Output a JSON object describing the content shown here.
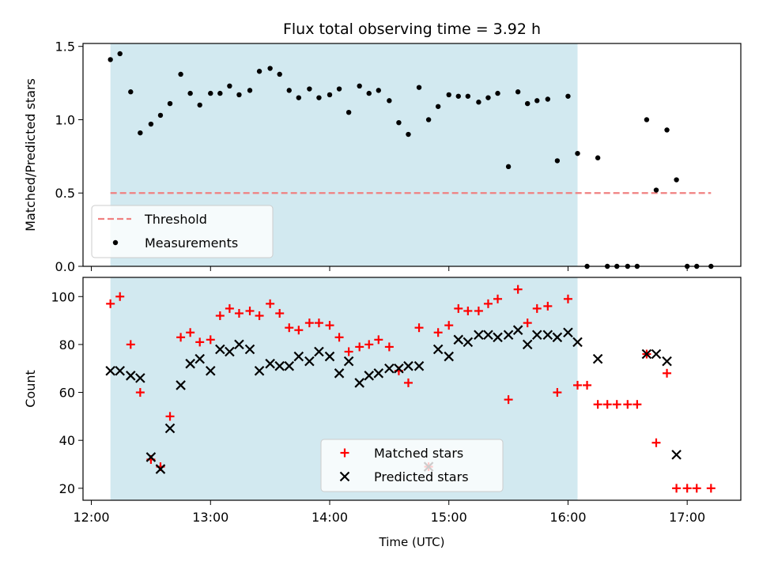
{
  "title": "Flux total observing time = 3.92 h",
  "x_axis": {
    "label": "Time (UTC)",
    "range_hours": [
      11.93,
      17.45
    ],
    "ticks": [
      {
        "value": 12,
        "label": "12:00"
      },
      {
        "value": 13,
        "label": "13:00"
      },
      {
        "value": 14,
        "label": "14:00"
      },
      {
        "value": 15,
        "label": "15:00"
      },
      {
        "value": 16,
        "label": "16:00"
      },
      {
        "value": 17,
        "label": "17:00"
      }
    ]
  },
  "observing_window_hours": [
    12.16,
    16.08
  ],
  "colors": {
    "shade": "#d2e9f0",
    "threshold": "#f08080",
    "matched": "#ff0000",
    "predicted": "#000000",
    "measurement": "#000000"
  },
  "chart_data": [
    {
      "type": "scatter",
      "panel": "top",
      "ylabel": "Matched/Predicted stars",
      "ylim": [
        0.0,
        1.52
      ],
      "yticks": [
        {
          "value": 0.0,
          "label": "0.0"
        },
        {
          "value": 0.5,
          "label": "0.5"
        },
        {
          "value": 1.0,
          "label": "1.0"
        },
        {
          "value": 1.5,
          "label": "1.5"
        }
      ],
      "threshold": {
        "name": "Threshold",
        "value": 0.5,
        "x_start": 12.16,
        "x_end": 17.2
      },
      "legend": [
        "Threshold",
        "Measurements"
      ],
      "legend_position": "lower-left",
      "series": [
        {
          "name": "Measurements",
          "x": [
            12.16,
            12.24,
            12.33,
            12.41,
            12.5,
            12.58,
            12.66,
            12.75,
            12.83,
            12.91,
            13.0,
            13.08,
            13.16,
            13.24,
            13.33,
            13.41,
            13.5,
            13.58,
            13.66,
            13.74,
            13.83,
            13.91,
            14.0,
            14.08,
            14.16,
            14.25,
            14.33,
            14.41,
            14.5,
            14.58,
            14.66,
            14.75,
            14.83,
            14.91,
            15.0,
            15.08,
            15.16,
            15.25,
            15.33,
            15.41,
            15.5,
            15.58,
            15.66,
            15.74,
            15.83,
            15.91,
            16.0,
            16.08,
            16.16,
            16.25,
            16.33,
            16.41,
            16.5,
            16.58,
            16.66,
            16.74,
            16.83,
            16.91,
            17.0,
            17.08,
            17.2
          ],
          "y": [
            1.41,
            1.45,
            1.19,
            0.91,
            0.97,
            1.03,
            1.11,
            1.31,
            1.18,
            1.1,
            1.18,
            1.18,
            1.23,
            1.17,
            1.2,
            1.33,
            1.35,
            1.31,
            1.2,
            1.15,
            1.21,
            1.15,
            1.17,
            1.21,
            1.05,
            1.23,
            1.18,
            1.2,
            1.13,
            0.98,
            0.9,
            1.22,
            1.0,
            1.09,
            1.17,
            1.16,
            1.16,
            1.12,
            1.15,
            1.18,
            0.68,
            1.19,
            1.11,
            1.13,
            1.14,
            0.72,
            1.16,
            0.77,
            0.0,
            0.74,
            0.0,
            0.0,
            0.0,
            0.0,
            1.0,
            0.52,
            0.93,
            0.59,
            0.0,
            0.0,
            0.0
          ]
        }
      ]
    },
    {
      "type": "scatter",
      "panel": "bottom",
      "ylabel": "Count",
      "ylim": [
        15,
        108
      ],
      "yticks": [
        {
          "value": 20,
          "label": "20"
        },
        {
          "value": 40,
          "label": "40"
        },
        {
          "value": 60,
          "label": "60"
        },
        {
          "value": 80,
          "label": "80"
        },
        {
          "value": 100,
          "label": "100"
        }
      ],
      "legend": [
        "Matched stars",
        "Predicted stars"
      ],
      "legend_position": "lower-center",
      "series": [
        {
          "name": "Matched stars",
          "marker": "plus",
          "x": [
            12.16,
            12.24,
            12.33,
            12.41,
            12.5,
            12.58,
            12.66,
            12.75,
            12.83,
            12.91,
            13.0,
            13.08,
            13.16,
            13.24,
            13.33,
            13.41,
            13.5,
            13.58,
            13.66,
            13.74,
            13.83,
            13.91,
            14.0,
            14.08,
            14.16,
            14.25,
            14.33,
            14.41,
            14.5,
            14.58,
            14.66,
            14.75,
            14.83,
            14.91,
            15.0,
            15.08,
            15.16,
            15.25,
            15.33,
            15.41,
            15.5,
            15.58,
            15.66,
            15.74,
            15.83,
            15.91,
            16.0,
            16.08,
            16.16,
            16.25,
            16.33,
            16.41,
            16.5,
            16.58,
            16.66,
            16.74,
            16.83,
            16.91,
            17.0,
            17.08,
            17.2
          ],
          "y": [
            97,
            100,
            80,
            60,
            32,
            29,
            50,
            83,
            85,
            81,
            82,
            92,
            95,
            93,
            94,
            92,
            97,
            93,
            87,
            86,
            89,
            89,
            88,
            83,
            77,
            79,
            80,
            82,
            79,
            69,
            64,
            87,
            29,
            85,
            88,
            95,
            94,
            94,
            97,
            99,
            57,
            103,
            89,
            95,
            96,
            60,
            99,
            63,
            63,
            55,
            55,
            55,
            55,
            55,
            76,
            39,
            68,
            20,
            20,
            20,
            20
          ]
        },
        {
          "name": "Predicted stars",
          "marker": "x",
          "x": [
            12.16,
            12.24,
            12.33,
            12.41,
            12.5,
            12.58,
            12.66,
            12.75,
            12.83,
            12.91,
            13.0,
            13.08,
            13.16,
            13.24,
            13.33,
            13.41,
            13.5,
            13.58,
            13.66,
            13.74,
            13.83,
            13.91,
            14.0,
            14.08,
            14.16,
            14.25,
            14.33,
            14.41,
            14.5,
            14.58,
            14.66,
            14.75,
            14.83,
            14.91,
            15.0,
            15.08,
            15.16,
            15.25,
            15.33,
            15.41,
            15.5,
            15.58,
            15.66,
            15.74,
            15.83,
            15.91,
            16.0,
            16.08,
            16.25,
            16.66,
            16.74,
            16.83,
            16.91
          ],
          "y": [
            69,
            69,
            67,
            66,
            33,
            28,
            45,
            63,
            72,
            74,
            69,
            78,
            77,
            80,
            78,
            69,
            72,
            71,
            71,
            75,
            73,
            77,
            75,
            68,
            73,
            64,
            67,
            68,
            70,
            70,
            71,
            71,
            29,
            78,
            75,
            82,
            81,
            84,
            84,
            83,
            84,
            86,
            80,
            84,
            84,
            83,
            85,
            81,
            74,
            76,
            76,
            73,
            34
          ]
        }
      ]
    }
  ]
}
